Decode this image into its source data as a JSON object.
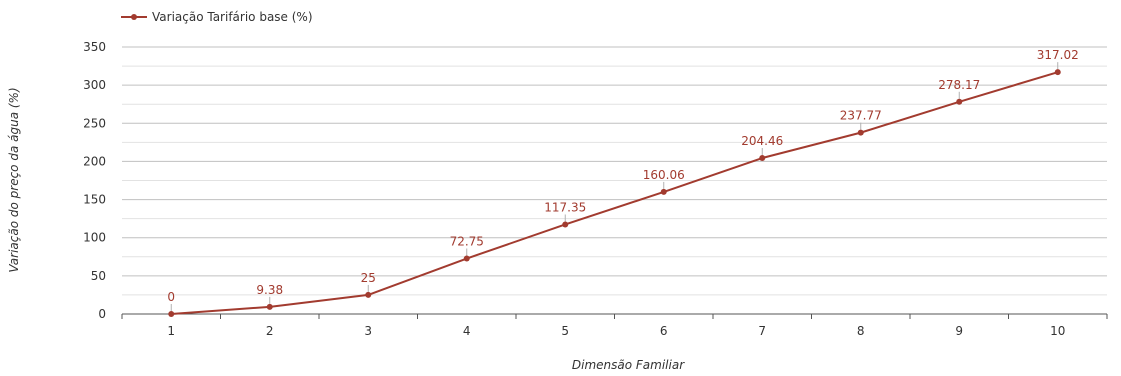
{
  "chart_data": {
    "type": "line",
    "title": "",
    "xlabel": "Dimensão Familiar",
    "ylabel": "Variação do preço da água (%)",
    "categories": [
      "1",
      "2",
      "3",
      "4",
      "5",
      "6",
      "7",
      "8",
      "9",
      "10"
    ],
    "series": [
      {
        "name": "Variação Tarifário base (%)",
        "values": [
          0,
          9.38,
          25,
          72.75,
          117.35,
          160.06,
          204.46,
          237.77,
          278.17,
          317.02
        ],
        "data_labels": [
          "0",
          "9.38",
          "25",
          "72.75",
          "117.35",
          "160.06",
          "204.46",
          "237.77",
          "278.17",
          "317.02"
        ]
      }
    ],
    "ylim": [
      0,
      350
    ],
    "yticks": [
      "0",
      "50",
      "100",
      "150",
      "200",
      "250",
      "300",
      "350"
    ],
    "grid": true,
    "legend_position": "top-left",
    "colors": {
      "series": "#a23b2f",
      "grid_major": "#c0c0c0",
      "grid_minor": "#e2e2e2",
      "axis": "#555555"
    }
  }
}
